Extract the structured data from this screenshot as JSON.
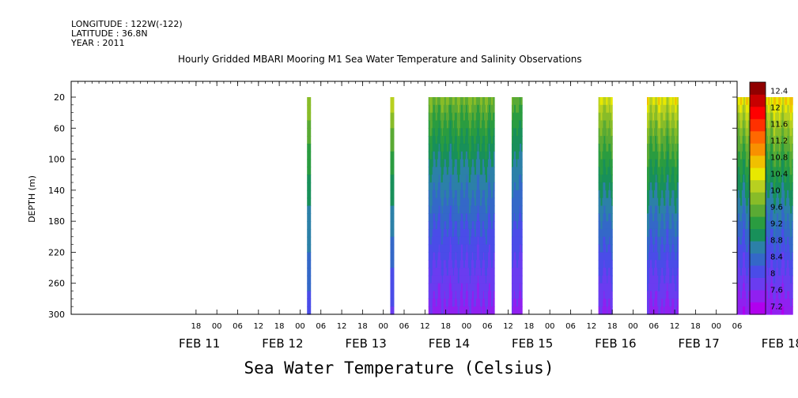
{
  "meta": {
    "longitude": "LONGITUDE : 122W(-122)",
    "latitude": "LATITUDE : 36.8N",
    "year": "YEAR : 2011"
  },
  "chart_data": {
    "type": "heatmap",
    "title": "Hourly Gridded MBARI Mooring M1 Sea Water Temperature and Salinity Observations",
    "xlabel": "Sea Water Temperature (Celsius)",
    "ylabel": "DEPTH (m)",
    "x_unit": "hours since 2011-02-11 00:00",
    "xlim": [
      -42,
      150
    ],
    "ylim": [
      300,
      20
    ],
    "y_ticks": [
      20,
      60,
      100,
      140,
      180,
      220,
      260,
      300
    ],
    "x_hour_ticks": [
      "18",
      "00",
      "06",
      "12",
      "18",
      "00",
      "06",
      "12",
      "18",
      "00",
      "06",
      "12",
      "18",
      "00",
      "06",
      "12",
      "18",
      "00",
      "06",
      "12",
      "18",
      "00",
      "06",
      "12",
      "18",
      "00",
      "06",
      "12",
      "18",
      "00",
      "06",
      "12"
    ],
    "x_day_labels": [
      "FEB 11",
      "FEB 12",
      "FEB 13",
      "FEB 14",
      "FEB 15",
      "FEB 16",
      "FEB 17",
      "FEB 18"
    ],
    "colorbar": {
      "levels": [
        7.2,
        7.6,
        8,
        8.4,
        8.8,
        9.2,
        9.6,
        10,
        10.4,
        10.8,
        11.2,
        11.6,
        12,
        12.4
      ],
      "labels": [
        "7.2",
        "7.6",
        "8",
        "8.4",
        "8.8",
        "9.2",
        "9.6",
        "10",
        "10.4",
        "10.8",
        "11.2",
        "11.6",
        "12",
        "12.4"
      ],
      "colors": [
        "#b000ee",
        "#9020f0",
        "#6a3cf0",
        "#4a4ce8",
        "#3468c8",
        "#2c80a8",
        "#18905a",
        "#2a9c40",
        "#5aaa34",
        "#88bc28",
        "#b8d020",
        "#e8e800",
        "#f0c000",
        "#f89000",
        "#ff6800",
        "#ff3000",
        "#ff0000",
        "#c80000",
        "#900000"
      ]
    },
    "segments": [
      {
        "start": 26,
        "end": 27,
        "t_surface": 10.9,
        "t_bottom": 8.2,
        "var": 0
      },
      {
        "start": 50,
        "end": 51,
        "t_surface": 11.3,
        "t_bottom": 7.9,
        "var": 0
      },
      {
        "start": 61,
        "end": 80,
        "t_surface": 10.6,
        "t_bottom": 7.45,
        "var": 0.25
      },
      {
        "start": 85,
        "end": 88,
        "t_surface": 10.4,
        "t_bottom": 7.45,
        "var": 0.15
      },
      {
        "start": 110,
        "end": 114,
        "t_surface": 11.4,
        "t_bottom": 7.5,
        "var": 0.2
      },
      {
        "start": 124,
        "end": 133,
        "t_surface": 11.5,
        "t_bottom": 7.45,
        "var": 0.3
      },
      {
        "start": 150,
        "end": 166,
        "t_surface": 11.8,
        "t_bottom": 7.3,
        "var": 0.3
      },
      {
        "start": 171,
        "end": 182,
        "t_surface": 12.3,
        "t_bottom": 7.6,
        "var": 0.25
      }
    ]
  }
}
